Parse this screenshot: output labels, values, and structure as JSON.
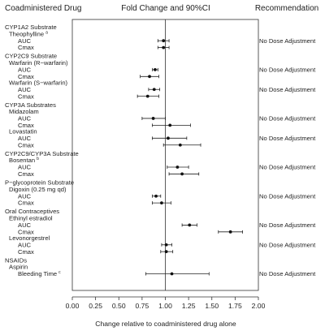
{
  "headers": {
    "drug": "Coadministered Drug",
    "effect": "Fold Change and 90%CI",
    "recommendation": "Recommendation"
  },
  "chart_data": {
    "type": "forest",
    "xlabel": "Change relative to coadministered drug alone",
    "xlim": [
      0.0,
      2.0
    ],
    "xticks": [
      "0.00",
      "0.25",
      "0.50",
      "0.75",
      "1.00",
      "1.25",
      "1.50",
      "1.75",
      "2.00"
    ],
    "reference_line": 1.0,
    "groups": [
      {
        "label": "CYP1A2 Substrate",
        "drugs": [
          {
            "name": "Theophylline",
            "sup": "a",
            "recommendation": "No Dose Adjustment",
            "metrics": [
              {
                "name": "AUC",
                "est": 0.98,
                "lo": 0.92,
                "hi": 1.04
              },
              {
                "name": "Cmax",
                "est": 0.98,
                "lo": 0.92,
                "hi": 1.04
              }
            ]
          }
        ]
      },
      {
        "label": "CYP2C9 Substrate",
        "drugs": [
          {
            "name": "Warfarin (R−warfarin)",
            "sup": "",
            "recommendation": "No Dose Adjustment",
            "metrics": [
              {
                "name": "AUC",
                "est": 0.89,
                "lo": 0.86,
                "hi": 0.92
              },
              {
                "name": "Cmax",
                "est": 0.83,
                "lo": 0.73,
                "hi": 0.93
              }
            ]
          },
          {
            "name": "Warfarin (S−warfarin)",
            "sup": "",
            "recommendation": "No Dose Adjustment",
            "metrics": [
              {
                "name": "AUC",
                "est": 0.88,
                "lo": 0.82,
                "hi": 0.94
              },
              {
                "name": "Cmax",
                "est": 0.81,
                "lo": 0.7,
                "hi": 0.93
              }
            ]
          }
        ]
      },
      {
        "label": "CYP3A Substrates",
        "drugs": [
          {
            "name": "Midazolam",
            "sup": "",
            "recommendation": "No Dose Adjustment",
            "metrics": [
              {
                "name": "AUC",
                "est": 0.87,
                "lo": 0.75,
                "hi": 1.0
              },
              {
                "name": "Cmax",
                "est": 1.05,
                "lo": 0.86,
                "hi": 1.27
              }
            ]
          },
          {
            "name": "Lovastatin",
            "sup": "",
            "recommendation": "No Dose Adjustment",
            "metrics": [
              {
                "name": "AUC",
                "est": 1.03,
                "lo": 0.86,
                "hi": 1.23
              },
              {
                "name": "Cmax",
                "est": 1.16,
                "lo": 0.98,
                "hi": 1.38
              }
            ]
          }
        ]
      },
      {
        "label": "CYP2C9/CYP3A Substrate",
        "drugs": [
          {
            "name": "Bosentan",
            "sup": "b",
            "recommendation": "No Dose Adjustment",
            "metrics": [
              {
                "name": "AUC",
                "est": 1.13,
                "lo": 1.02,
                "hi": 1.25
              },
              {
                "name": "Cmax",
                "est": 1.18,
                "lo": 1.04,
                "hi": 1.36
              }
            ]
          }
        ]
      },
      {
        "label": "P−glycoprotein Substrate",
        "drugs": [
          {
            "name": "Digoxin (0.25 mg qd)",
            "sup": "",
            "recommendation": "No Dose Adjustment",
            "metrics": [
              {
                "name": "AUC",
                "est": 0.9,
                "lo": 0.86,
                "hi": 0.95
              },
              {
                "name": "Cmax",
                "est": 0.96,
                "lo": 0.86,
                "hi": 1.06
              }
            ]
          }
        ]
      },
      {
        "label": "Oral Contraceptives",
        "drugs": [
          {
            "name": "Ethinyl estradiol",
            "sup": "",
            "recommendation": "No Dose Adjustment",
            "metrics": [
              {
                "name": "AUC",
                "est": 1.26,
                "lo": 1.18,
                "hi": 1.34
              },
              {
                "name": "Cmax",
                "est": 1.7,
                "lo": 1.57,
                "hi": 1.83
              }
            ]
          },
          {
            "name": "Levonorgestrel",
            "sup": "",
            "recommendation": "No Dose Adjustment",
            "metrics": [
              {
                "name": "AUC",
                "est": 1.01,
                "lo": 0.96,
                "hi": 1.07
              },
              {
                "name": "Cmax",
                "est": 1.01,
                "lo": 0.95,
                "hi": 1.08
              }
            ]
          }
        ]
      },
      {
        "label": "NSAIDs",
        "drugs": [
          {
            "name": "Aspirin",
            "sup": "",
            "recommendation": "",
            "metrics": [
              {
                "name": "Bleeding Time",
                "sup": "c",
                "est": 1.07,
                "lo": 0.79,
                "hi": 1.47,
                "recommendation": "No Dose Adjustment"
              }
            ]
          }
        ]
      }
    ]
  }
}
